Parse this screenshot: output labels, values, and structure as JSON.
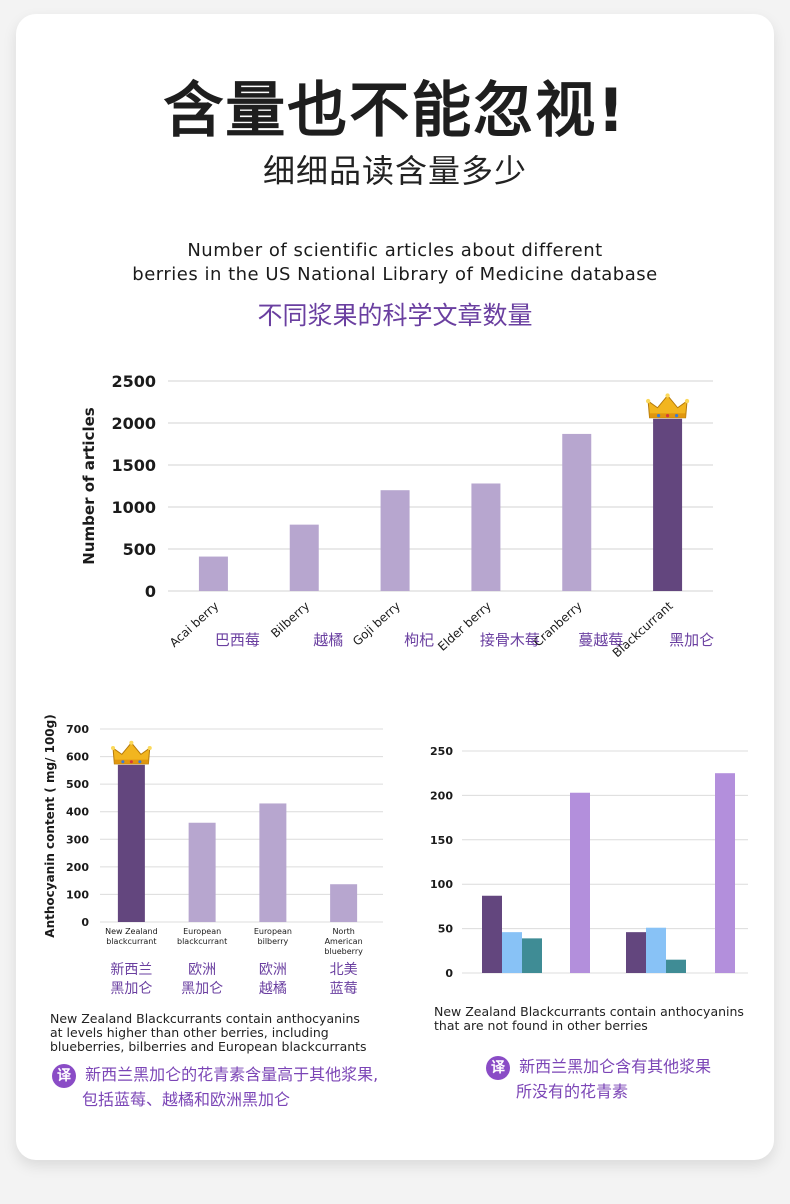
{
  "header": {
    "headline": "含量也不能忽视!",
    "subheadline": "细细品读含量多少"
  },
  "chart1": {
    "title_en_line1": "Number of scientific articles about different",
    "title_en_line2": "berries in the US National Library of Medicine database",
    "title_cn": "不同浆果的科学文章数量",
    "category_cn": [
      "巴西莓",
      "越橘",
      "枸杞",
      "接骨木莓",
      "蔓越莓",
      "黑加仑"
    ]
  },
  "chart2": {
    "category_cn_line1": [
      "新西兰",
      "欧洲",
      "欧洲",
      "北美"
    ],
    "category_cn_line2": [
      "黑加仑",
      "黑加仑",
      "越橘",
      "蓝莓"
    ],
    "caption_en": [
      "New Zealand Blackcurrants contain anthocyanins",
      "at levels higher than other berries, including",
      "blueberries, bilberries and European blackcurrants"
    ],
    "translate_badge": "译",
    "note_cn": [
      "新西兰黑加仑的花青素含量高于其他浆果,",
      "包括蓝莓、越橘和欧洲黑加仑"
    ]
  },
  "chart3": {
    "caption_en": [
      "New Zealand Blackcurrants contain anthocyanins",
      "that are not found in other berries"
    ],
    "translate_badge": "译",
    "note_cn": [
      "新西兰黑加仑含有其他浆果",
      "所没有的花青素"
    ]
  },
  "chart_data": [
    {
      "type": "bar",
      "ylabel": "Number of articles",
      "categories": [
        "Acai berry",
        "Bilberry",
        "Goji berry",
        "Elder berry",
        "Cranberry",
        "Blackcurrant"
      ],
      "values": [
        410,
        790,
        1200,
        1280,
        1870,
        2050
      ],
      "ylim": [
        0,
        2500
      ],
      "yticks": [
        0,
        500,
        1000,
        1500,
        2000,
        2500
      ],
      "grid": true,
      "colors": {
        "default": "#b7a6cf",
        "highlight": "#63467e"
      },
      "highlight_index": 5
    },
    {
      "type": "bar",
      "ylabel": "Anthocyanin content ( mg/ 100g)",
      "categories": [
        "New Zealand blackcurrant",
        "European blackcurrant",
        "European bilberry",
        "North American blueberry"
      ],
      "category_lines": [
        [
          "New Zealand",
          "blackcurrant"
        ],
        [
          "European",
          "blackcurrant"
        ],
        [
          "European",
          "bilberry"
        ],
        [
          "North",
          "American",
          "blueberry"
        ]
      ],
      "values": [
        570,
        360,
        430,
        137
      ],
      "ylim": [
        0,
        700
      ],
      "yticks": [
        0,
        100,
        200,
        300,
        400,
        500,
        600,
        700
      ],
      "grid": true,
      "colors": {
        "default": "#b7a6cf",
        "highlight": "#63467e"
      },
      "highlight_index": 0
    },
    {
      "type": "bar",
      "series": [
        {
          "values": [
            87,
            46
          ],
          "color": "#63467e"
        },
        {
          "values": [
            46,
            51
          ],
          "color": "#88c2f6"
        },
        {
          "values": [
            39,
            15
          ],
          "color": "#3f8c95"
        },
        {
          "values": [
            203,
            225
          ],
          "color": "#b38fdc"
        }
      ],
      "ylim": [
        0,
        250
      ],
      "yticks": [
        0,
        50,
        100,
        150,
        200,
        250
      ],
      "grid": true
    }
  ]
}
